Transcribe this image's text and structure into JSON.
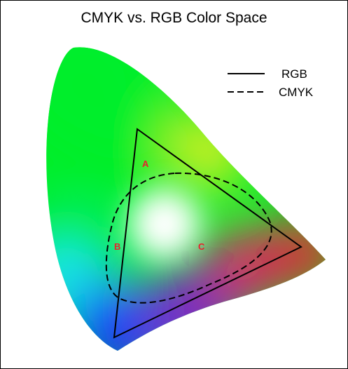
{
  "title": "CMYK vs. RGB Color Space",
  "legend": {
    "rgb_label": "RGB",
    "cmyk_label": "CMYK"
  },
  "regions": {
    "a": "A",
    "b": "B",
    "c": "C"
  },
  "colors": {
    "outline": "#000000",
    "region_label": "#e8202c",
    "green": "#00ee2a",
    "cyan": "#18e8f0",
    "blue": "#1030ff",
    "violet": "#8a10d8",
    "magenta": "#f01868",
    "red": "#ff1030",
    "yellow": "#f0f020",
    "white": "#ffffff"
  }
}
